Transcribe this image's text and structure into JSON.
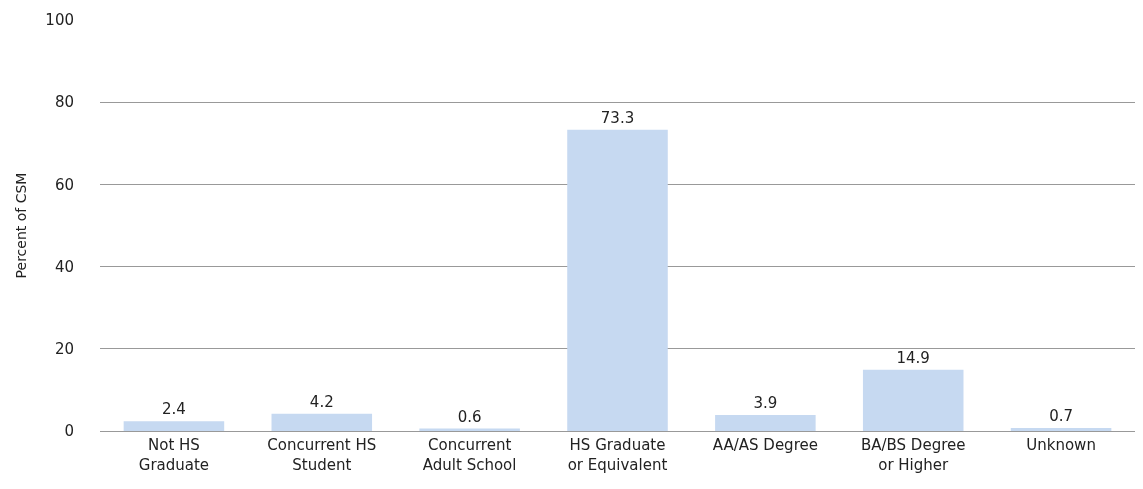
{
  "chart_data": {
    "type": "bar",
    "ylabel": "Percent of CSM",
    "categories": [
      "Not HS\nGraduate",
      "Concurrent HS\nStudent",
      "Concurrent\nAdult School",
      "HS Graduate\nor Equivalent",
      "AA/AS Degree",
      "BA/BS Degree\nor Higher",
      "Unknown"
    ],
    "values": [
      2.4,
      4.2,
      0.6,
      73.3,
      3.9,
      14.9,
      0.7
    ],
    "color": "#c6d9f1",
    "ylim": [
      0,
      100
    ],
    "yticks": [
      0,
      20,
      40,
      60,
      80,
      100
    ],
    "grid": "y",
    "data_labels": true
  }
}
